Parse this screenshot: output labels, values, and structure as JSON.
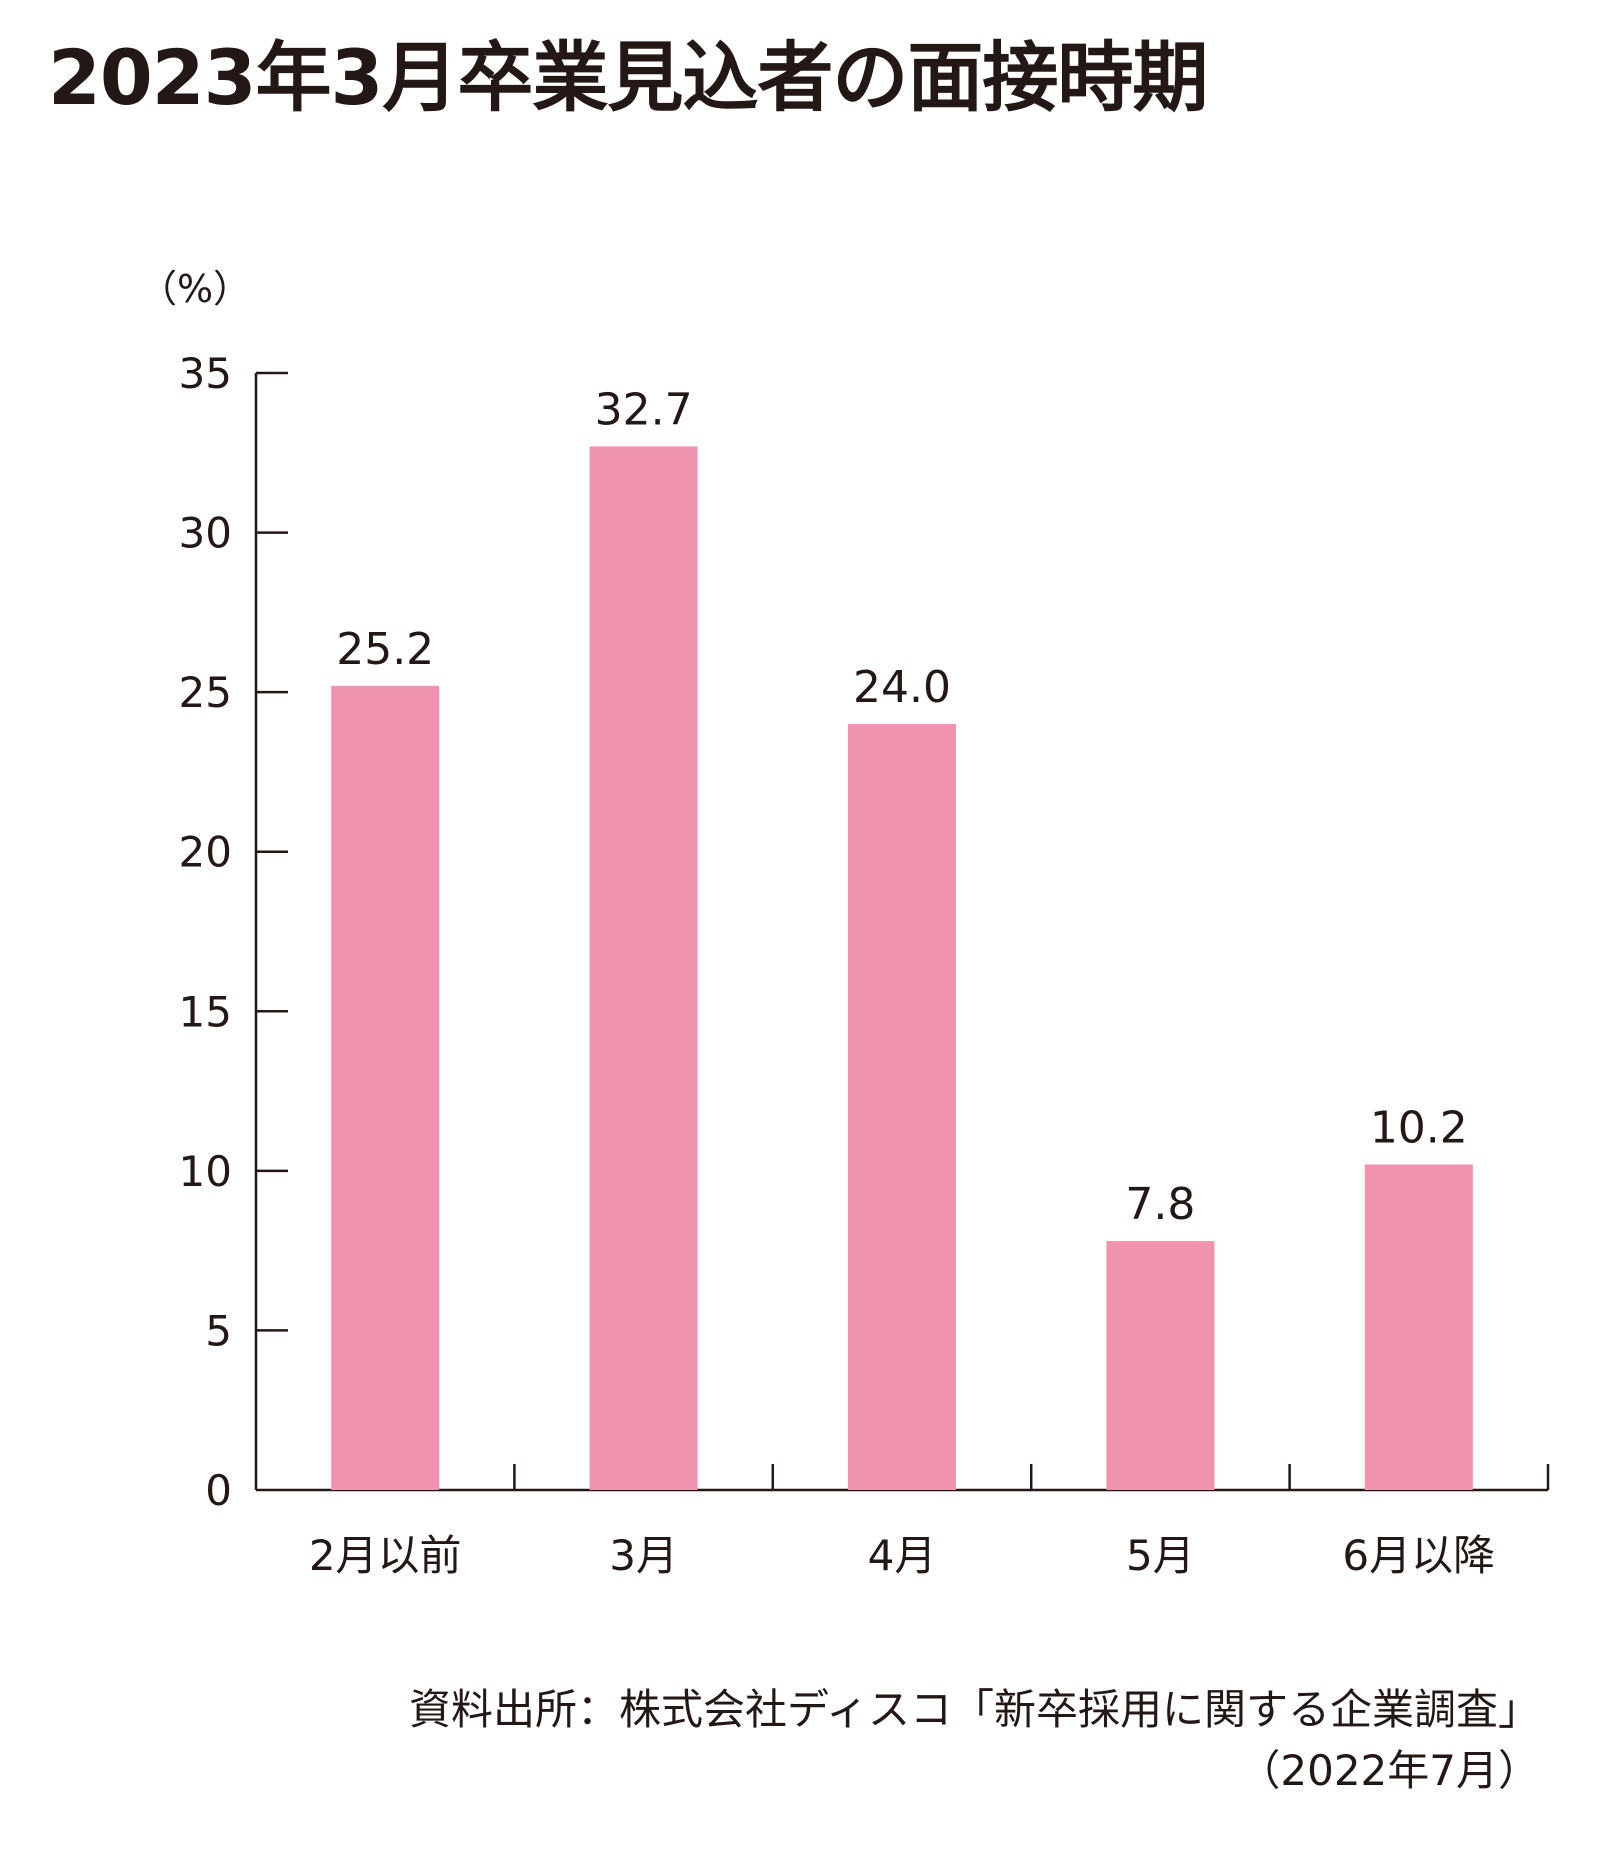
{
  "chart_data": {
    "type": "bar",
    "title": "2023年3月卒業見込者の面接時期",
    "ylabel": "（%）",
    "xlabel": "",
    "ylim": [
      0,
      35
    ],
    "yticks": [
      0,
      5,
      10,
      15,
      20,
      25,
      30,
      35
    ],
    "categories": [
      "2月以前",
      "3月",
      "4月",
      "5月",
      "6月以降"
    ],
    "values": [
      25.2,
      32.7,
      24.0,
      7.8,
      10.2
    ],
    "value_labels": [
      "25.2",
      "32.7",
      "24.0",
      "7.8",
      "10.2"
    ],
    "bar_color": "#F093AE",
    "axis_color": "#231815",
    "text_color": "#231815",
    "grid": false,
    "legend": "none"
  },
  "source": {
    "line1": "資料出所：株式会社ディスコ「新卒採用に関する企業調査」",
    "line2": "（2022年7月）"
  }
}
